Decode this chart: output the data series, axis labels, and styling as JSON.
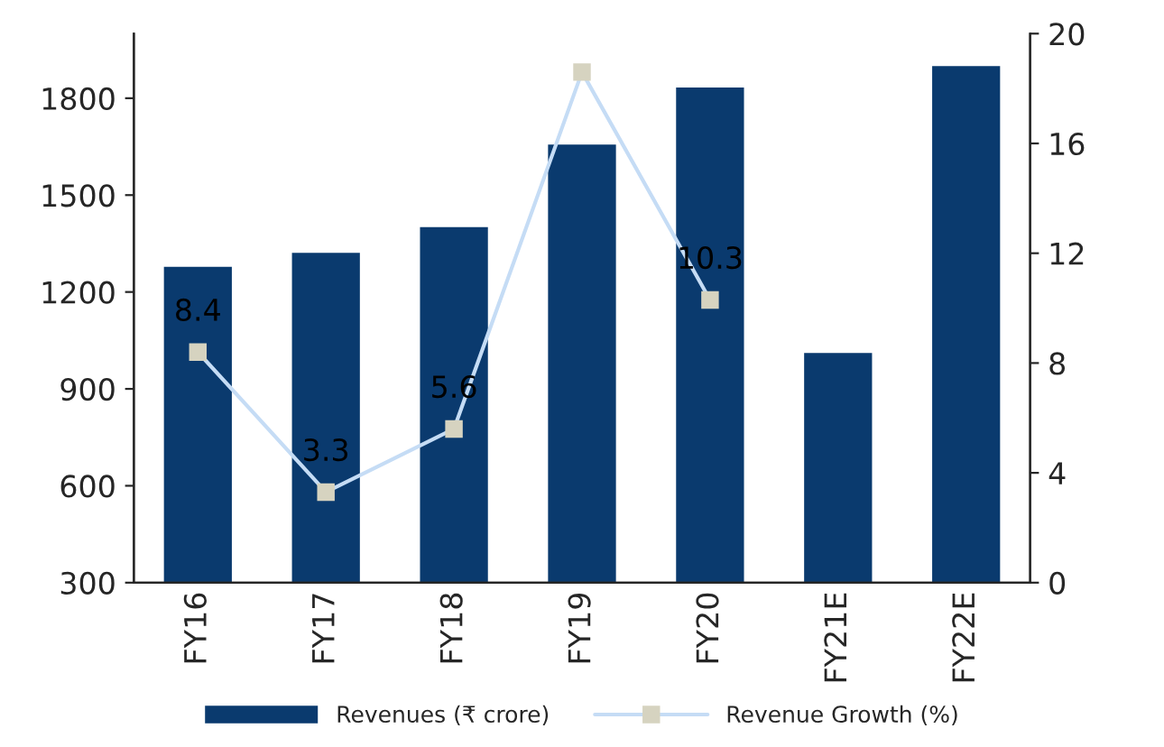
{
  "chart_data": {
    "type": "bar",
    "categories": [
      "FY16",
      "FY17",
      "FY18",
      "FY19",
      "FY20",
      "FY21E",
      "FY22E"
    ],
    "series": [
      {
        "name": "Revenues (₹ crore)",
        "color": "#0a3a6e",
        "values": [
          1282,
          1325,
          1405,
          1660,
          1837,
          1015,
          1903
        ]
      },
      {
        "name": "Revenue Growth (%)",
        "type": "line",
        "axis": "y2",
        "color": "#c5dcf5",
        "marker": "square",
        "values": [
          8.4,
          3.3,
          5.6,
          18.6,
          10.3,
          null,
          null
        ],
        "value_labels": [
          "8.4",
          "3.3",
          "5.6",
          null,
          "10.3",
          null,
          null
        ]
      }
    ],
    "ylim": [
      300,
      2000
    ],
    "yticks": [
      300,
      600,
      900,
      1200,
      1500,
      1800
    ],
    "y2lim": [
      0,
      20
    ],
    "y2ticks": [
      0,
      4,
      8,
      12,
      16,
      20
    ],
    "grid": false,
    "legend": "bottom"
  }
}
